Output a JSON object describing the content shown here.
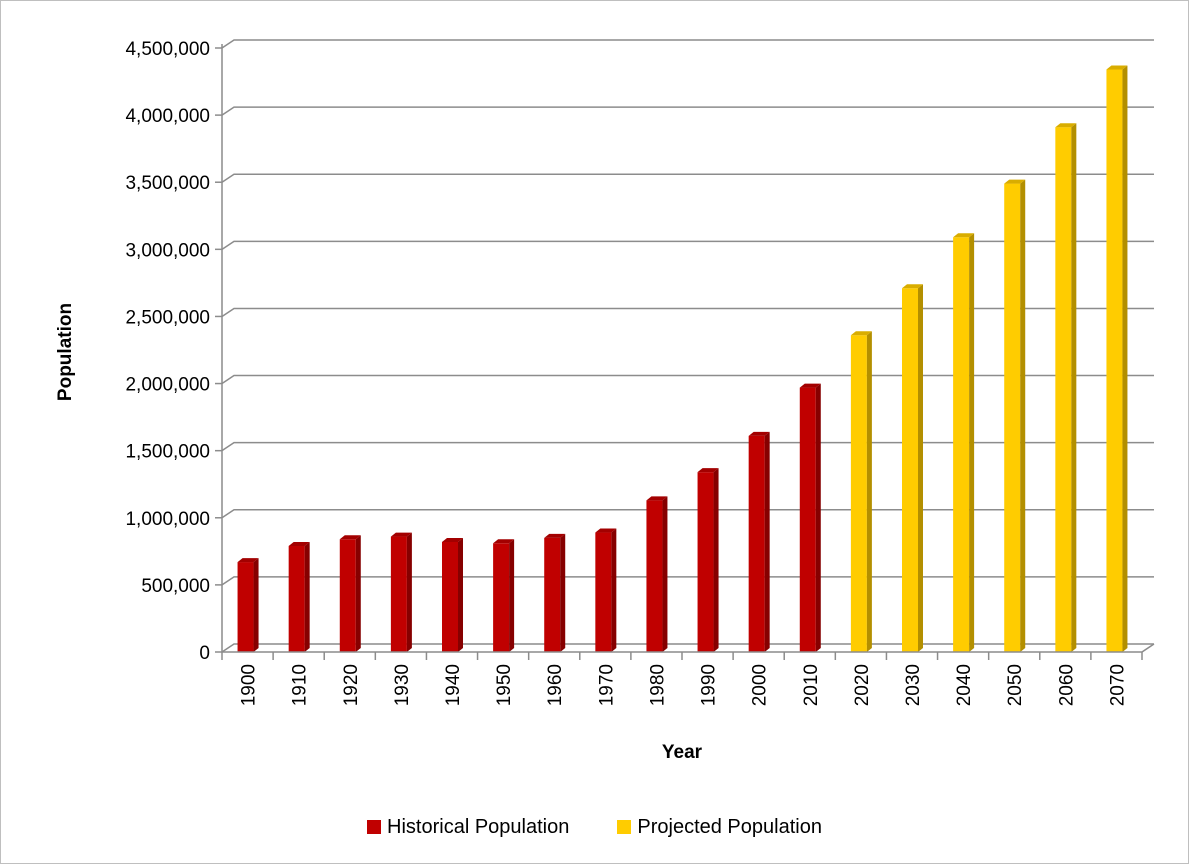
{
  "chart_data": {
    "type": "bar",
    "title": "",
    "xlabel": "Year",
    "ylabel": "Population",
    "categories": [
      "1900",
      "1910",
      "1920",
      "1930",
      "1940",
      "1950",
      "1960",
      "1970",
      "1980",
      "1990",
      "2000",
      "2010",
      "2020",
      "2030",
      "2040",
      "2050",
      "2060",
      "2070"
    ],
    "series": [
      {
        "name": "Historical Population",
        "color": "#c00000",
        "values": [
          670000,
          790000,
          840000,
          860000,
          820000,
          810000,
          850000,
          890000,
          1130000,
          1340000,
          1610000,
          1970000,
          null,
          null,
          null,
          null,
          null,
          null
        ]
      },
      {
        "name": "Projected Population",
        "color": "#ffcc00",
        "values": [
          null,
          null,
          null,
          null,
          null,
          null,
          null,
          null,
          null,
          null,
          null,
          null,
          2360000,
          2710000,
          3090000,
          3490000,
          3910000,
          4340000
        ]
      }
    ],
    "ylim": [
      0,
      4500000
    ],
    "yticks": [
      "0",
      "500,000",
      "1,000,000",
      "1,500,000",
      "2,000,000",
      "2,500,000",
      "3,000,000",
      "3,500,000",
      "4,000,000",
      "4,500,000"
    ],
    "grid": true,
    "legend_position": "bottom"
  }
}
